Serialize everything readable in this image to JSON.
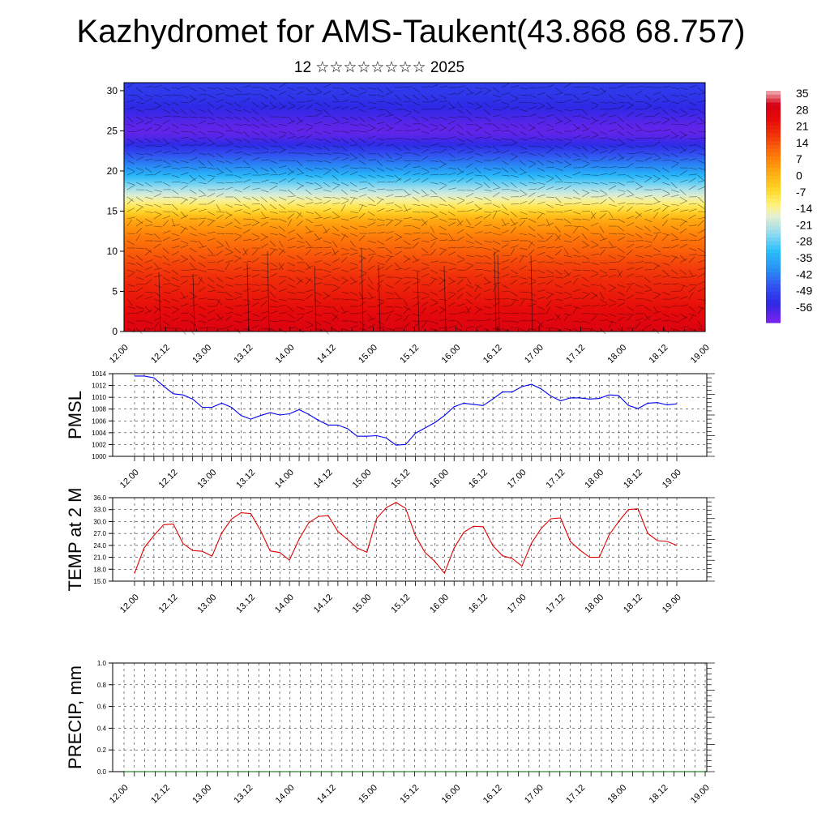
{
  "title": "Kazhydromet for AMS-Taukent(43.868 68.757)",
  "subtitle": "12 ☆☆☆☆☆☆☆☆ 2025",
  "colors": {
    "pmsl_line": "#0000ee",
    "temp_line": "#e00000",
    "precip_line": "#006400",
    "grid": "#000000"
  },
  "chart_data": [
    {
      "type": "heatmap",
      "name_hint": "temperature cross-section",
      "y_ticks": [
        "0",
        "5",
        "10",
        "15",
        "20",
        "25",
        "30"
      ],
      "ylim": [
        0,
        31
      ],
      "x_ticks": [
        "12.00",
        "12.12",
        "13.00",
        "13.12",
        "14.00",
        "14.12",
        "15.00",
        "15.12",
        "16.00",
        "16.12",
        "17.00",
        "17.12",
        "18.00",
        "18.12",
        "19.00"
      ],
      "colorbar_labels": [
        "35",
        "28",
        "21",
        "14",
        "7",
        "0",
        "-7",
        "-14",
        "-21",
        "-28",
        "-35",
        "-42",
        "-49",
        "-56"
      ],
      "colorbar_range": [
        -60,
        38
      ],
      "level_temperature_profile": {
        "levels": [
          0,
          2,
          4,
          6,
          8,
          10,
          12,
          14,
          15,
          16,
          18,
          20,
          22,
          24,
          25,
          27,
          29,
          31
        ],
        "values": [
          30,
          27,
          24,
          21,
          18,
          14,
          10,
          3,
          -4,
          -10,
          -22,
          -35,
          -45,
          -55,
          -58,
          -54,
          -50,
          -48
        ]
      }
    },
    {
      "type": "line",
      "ylabel": "PMSL",
      "y_ticks": [
        "1000",
        "1002",
        "1004",
        "1006",
        "1008",
        "1010",
        "1012",
        "1014"
      ],
      "ylim": [
        1000,
        1014
      ],
      "x_ticks": [
        "12.00",
        "12.12",
        "13.00",
        "13.12",
        "14.00",
        "14.12",
        "15.00",
        "15.12",
        "16.00",
        "16.12",
        "17.00",
        "17.12",
        "18.00",
        "18.12",
        "19.00"
      ],
      "series": [
        {
          "values": [
            1013.6,
            1013.6,
            1013.3,
            1011.9,
            1010.6,
            1010.4,
            1009.7,
            1008.3,
            1008.3,
            1009.0,
            1008.3,
            1006.9,
            1006.3,
            1006.9,
            1007.4,
            1007.0,
            1007.2,
            1007.9,
            1007.1,
            1006.1,
            1005.3,
            1005.3,
            1004.7,
            1003.4,
            1003.4,
            1003.5,
            1003.1,
            1001.9,
            1002.0,
            1003.9,
            1004.8,
            1005.7,
            1006.9,
            1008.4,
            1009.0,
            1008.8,
            1008.6,
            1009.7,
            1010.9,
            1010.9,
            1011.8,
            1012.2,
            1011.4,
            1010.2,
            1009.4,
            1009.9,
            1009.9,
            1009.7,
            1009.8,
            1010.4,
            1010.3,
            1008.6,
            1008.1,
            1009.0,
            1009.1,
            1008.7,
            1008.9
          ]
        }
      ]
    },
    {
      "type": "line",
      "ylabel": "TEMP at 2 M",
      "y_ticks": [
        "15.0",
        "18.0",
        "21.0",
        "24.0",
        "27.0",
        "30.0",
        "33.0",
        "36.0"
      ],
      "ylim": [
        15,
        36
      ],
      "x_ticks": [
        "12.00",
        "12.12",
        "13.00",
        "13.12",
        "14.00",
        "14.12",
        "15.00",
        "15.12",
        "16.00",
        "16.12",
        "17.00",
        "17.12",
        "18.00",
        "18.12",
        "19.00"
      ],
      "series": [
        {
          "values": [
            17.0,
            23.4,
            26.5,
            29.2,
            29.4,
            24.5,
            22.7,
            22.5,
            21.3,
            27.1,
            30.6,
            32.2,
            32.0,
            27.8,
            22.6,
            22.2,
            20.3,
            25.6,
            29.7,
            31.3,
            31.5,
            27.5,
            25.5,
            23.3,
            22.3,
            30.8,
            33.5,
            34.8,
            33.3,
            26.5,
            22.2,
            20.0,
            17.0,
            23.3,
            27.3,
            28.8,
            28.7,
            23.9,
            21.4,
            20.7,
            18.8,
            24.6,
            28.3,
            30.7,
            30.9,
            25.0,
            22.8,
            21.0,
            21.0,
            26.6,
            30.0,
            33.0,
            33.2,
            27.0,
            25.2,
            25.0,
            24.0
          ]
        }
      ]
    },
    {
      "type": "line",
      "ylabel": "PRECIP, mm",
      "y_ticks": [
        "0.0",
        "0.2",
        "0.4",
        "0.6",
        "0.8",
        "1.0"
      ],
      "ylim": [
        0,
        1
      ],
      "x_ticks": [
        "12.00",
        "12.12",
        "13.00",
        "13.12",
        "14.00",
        "14.12",
        "15.00",
        "15.12",
        "16.00",
        "16.12",
        "17.00",
        "17.12",
        "18.00",
        "18.12",
        "19.00"
      ],
      "series": [
        {
          "values": [
            0,
            0,
            0,
            0,
            0,
            0,
            0,
            0,
            0,
            0,
            0,
            0,
            0,
            0,
            0,
            0,
            0,
            0,
            0,
            0,
            0,
            0,
            0,
            0,
            0,
            0,
            0,
            0,
            0,
            0,
            0,
            0,
            0,
            0,
            0,
            0,
            0,
            0,
            0,
            0,
            0,
            0,
            0,
            0,
            0,
            0,
            0,
            0,
            0,
            0,
            0,
            0,
            0,
            0,
            0,
            0,
            0
          ]
        }
      ]
    }
  ]
}
